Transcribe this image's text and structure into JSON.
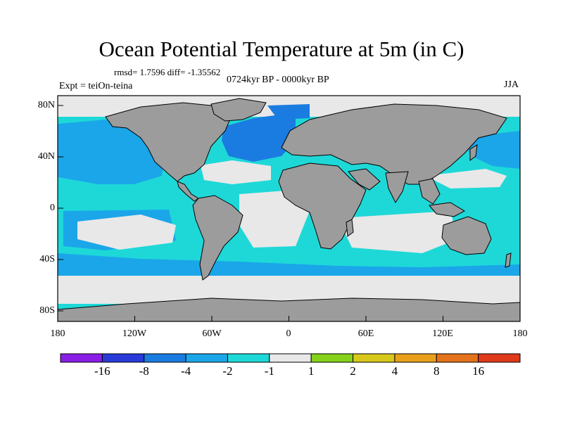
{
  "title": "Ocean Potential Temperature at 5m (in C)",
  "stats": "rmsd= 1.7596 diff= -1.35562",
  "experiment": "Expt = teiOn-teina",
  "period": "0724kyr BP - 0000kyr BP",
  "season": "JJA",
  "latitude_labels": [
    "80N",
    "40N",
    "0",
    "40S",
    "80S"
  ],
  "longitude_labels": [
    "180",
    "120W",
    "60W",
    "0",
    "60E",
    "120E",
    "180"
  ],
  "colorbar": {
    "colors": [
      "#8a1ee6",
      "#2a3ad8",
      "#1a7ce0",
      "#1aa6e8",
      "#1ed8d8",
      "#e8e8e8",
      "#86d21a",
      "#d8c81a",
      "#e8a01a",
      "#e4721a",
      "#e03a1a"
    ],
    "labels": [
      "-16",
      "-8",
      "-4",
      "-2",
      "-1",
      "1",
      "2",
      "4",
      "8",
      "16"
    ]
  },
  "map_colors": {
    "land": "#9c9c9c",
    "near_zero": "#e8e8e8",
    "cyan": "#1ed8d8",
    "light_blue": "#1aa6e8",
    "blue": "#1a7ce0",
    "coast": "#000000"
  }
}
